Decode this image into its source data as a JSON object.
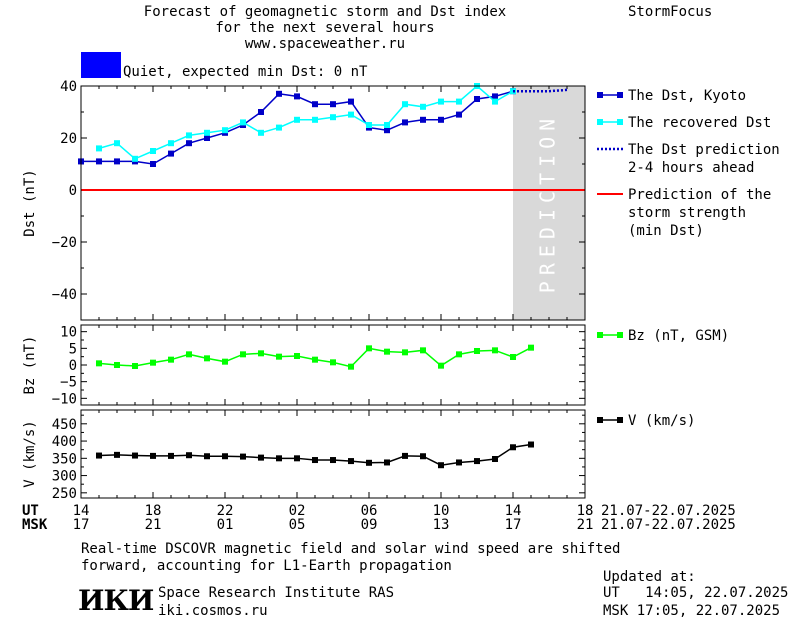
{
  "header": {
    "title_lines": [
      "Forecast of geomagnetic storm and Dst index",
      "for the next several hours",
      "www.spaceweather.ru"
    ],
    "brand": "StormFocus",
    "status_text": "Quiet, expected min Dst: 0 nT",
    "status_color": "#0000ff"
  },
  "footer": {
    "note_lines": [
      "Real-time DSCOVR magnetic field and solar wind speed are shifted",
      "forward, accounting for L1-Earth propagation"
    ],
    "institute": "Space Research Institute RAS",
    "website": "iki.cosmos.ru",
    "logo_text": "ИКИ",
    "updated_label": "Updated at:",
    "updated_ut": "UT   14:05, 22.07.2025",
    "updated_msk": "MSK 17:05, 22.07.2025"
  },
  "time_axis": {
    "ut_label": "UT",
    "msk_label": "MSK",
    "ut_ticks": [
      "14",
      "18",
      "22",
      "02",
      "06",
      "10",
      "14",
      "18"
    ],
    "msk_ticks": [
      "17",
      "21",
      "01",
      "05",
      "09",
      "13",
      "17",
      "21"
    ],
    "date_range": "21.07-22.07.2025",
    "range_hours": [
      0,
      28
    ]
  },
  "chart_data": [
    {
      "type": "line",
      "panel": "dst",
      "ylabel": "Dst (nT)",
      "ylim": [
        -50,
        40
      ],
      "yticks": [
        -40,
        -20,
        0,
        20,
        40
      ],
      "xlim": [
        0,
        28
      ],
      "prediction_region": {
        "from": 24,
        "to": 28,
        "label": "PREDICTION",
        "color": "#d9d9d9"
      },
      "x": [
        0,
        1,
        2,
        3,
        4,
        5,
        6,
        7,
        8,
        9,
        10,
        11,
        12,
        13,
        14,
        15,
        16,
        17,
        18,
        19,
        20,
        21,
        22,
        23,
        24
      ],
      "series": [
        {
          "name": "The Dst, Kyoto",
          "color": "#0000c8",
          "marker": "square",
          "values": [
            11,
            11,
            11,
            11,
            10,
            14,
            18,
            20,
            22,
            25,
            30,
            37,
            36,
            33,
            33,
            34,
            24,
            23,
            26,
            27,
            27,
            29,
            35,
            36,
            38
          ]
        },
        {
          "name": "The recovered Dst",
          "color": "#00ffff",
          "marker": "square",
          "values": [
            null,
            16,
            18,
            12,
            15,
            18,
            21,
            22,
            23,
            26,
            22,
            24,
            27,
            27,
            28,
            29,
            25,
            25,
            33,
            32,
            34,
            34,
            40,
            34,
            38
          ]
        },
        {
          "name": "The Dst prediction\n2-4 hours ahead",
          "color": "#0000c8",
          "style": "dotted",
          "x": [
            24,
            25,
            26,
            27
          ],
          "values": [
            38,
            38,
            38,
            38.5
          ]
        },
        {
          "name": "Prediction of the\nstorm strength\n(min Dst)",
          "color": "#ff0000",
          "style": "line",
          "x": [
            0,
            28
          ],
          "values": [
            0,
            0
          ]
        }
      ]
    },
    {
      "type": "line",
      "panel": "bz",
      "ylabel": "Bz (nT)",
      "ylim": [
        -12,
        12
      ],
      "yticks": [
        -10,
        -5,
        0,
        5,
        10
      ],
      "xlim": [
        0,
        28
      ],
      "x": [
        1,
        2,
        3,
        4,
        5,
        6,
        7,
        8,
        9,
        10,
        11,
        12,
        13,
        14,
        15,
        16,
        17,
        18,
        19,
        20,
        21,
        22,
        23,
        24,
        25
      ],
      "series": [
        {
          "name": "Bz (nT, GSM)",
          "color": "#00ff00",
          "marker": "square",
          "values": [
            0.5,
            0,
            -0.3,
            0.7,
            1.6,
            3.2,
            2.0,
            1.0,
            3.2,
            3.5,
            2.5,
            2.7,
            1.6,
            0.8,
            -0.5,
            5.0,
            4.0,
            3.8,
            4.4,
            -0.2,
            3.2,
            4.2,
            4.4,
            2.4,
            5.2
          ]
        }
      ]
    },
    {
      "type": "line",
      "panel": "v",
      "ylabel": "V (km/s)",
      "ylim": [
        235,
        490
      ],
      "yticks": [
        250,
        300,
        350,
        400,
        450
      ],
      "xlim": [
        0,
        28
      ],
      "x": [
        1,
        2,
        3,
        4,
        5,
        6,
        7,
        8,
        9,
        10,
        11,
        12,
        13,
        14,
        15,
        16,
        17,
        18,
        19,
        20,
        21,
        22,
        23,
        24,
        25
      ],
      "series": [
        {
          "name": "V (km/s)",
          "color": "#000000",
          "marker": "square",
          "values": [
            358,
            360,
            358,
            357,
            357,
            359,
            356,
            356,
            355,
            352,
            350,
            350,
            345,
            345,
            342,
            337,
            338,
            357,
            356,
            330,
            338,
            342,
            348,
            382,
            390
          ]
        }
      ]
    }
  ]
}
